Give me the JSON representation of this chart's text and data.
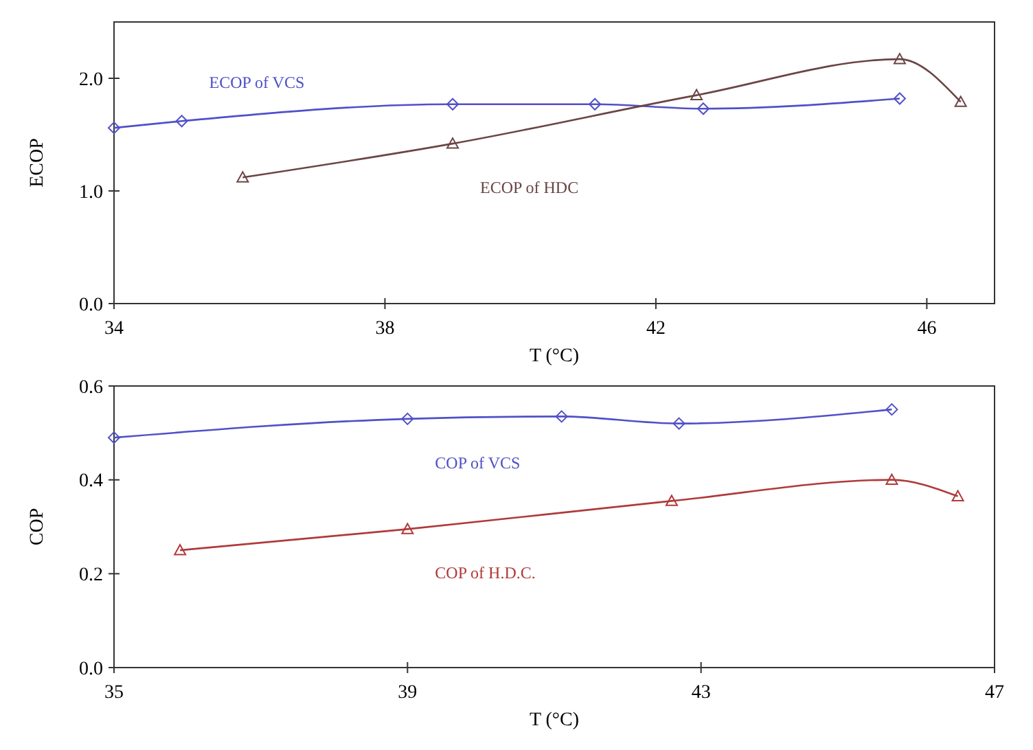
{
  "chart_data": [
    {
      "type": "line",
      "xlabel": "T (°C)",
      "ylabel": "ECOP",
      "xlim": [
        34,
        47
      ],
      "xticks": [
        34,
        38,
        42,
        46
      ],
      "ylim": [
        0,
        2.5
      ],
      "yticks": [
        {
          "value": 0,
          "label": "0.0"
        },
        {
          "value": 1,
          "label": "1.0"
        },
        {
          "value": 2,
          "label": "2.0"
        }
      ],
      "grid": false,
      "line_style": "solid",
      "series": [
        {
          "name": "ECOP of VCS",
          "color": "#5050c8",
          "marker": "diamond",
          "x": [
            34,
            35,
            39,
            41.1,
            42.7,
            45.6
          ],
          "values": [
            1.56,
            1.62,
            1.77,
            1.77,
            1.73,
            1.82
          ]
        },
        {
          "name": "ECOP of HDC",
          "color": "#6b4545",
          "marker": "triangle",
          "x": [
            35.9,
            39,
            42.6,
            45.6,
            46.5
          ],
          "values": [
            1.12,
            1.42,
            1.85,
            2.17,
            1.79
          ]
        }
      ]
    },
    {
      "type": "line",
      "xlabel": "T (°C)",
      "ylabel": "COP",
      "xlim": [
        35,
        47
      ],
      "xticks": [
        35,
        39,
        43,
        47
      ],
      "ylim": [
        0,
        0.6
      ],
      "yticks": [
        {
          "value": 0,
          "label": "0.0"
        },
        {
          "value": 0.2,
          "label": "0.2"
        },
        {
          "value": 0.4,
          "label": "0.4"
        },
        {
          "value": 0.6,
          "label": "0.6"
        }
      ],
      "grid": false,
      "line_style": "solid",
      "series": [
        {
          "name": "COP of VCS",
          "color": "#5050c8",
          "marker": "diamond",
          "x": [
            35,
            39,
            41.1,
            42.7,
            45.6
          ],
          "values": [
            0.49,
            0.53,
            0.535,
            0.52,
            0.55
          ]
        },
        {
          "name": "COP of H.D.C.",
          "color": "#b03a3a",
          "marker": "triangle",
          "x": [
            35.9,
            39,
            42.6,
            45.6,
            46.5
          ],
          "values": [
            0.25,
            0.295,
            0.355,
            0.4,
            0.365
          ]
        }
      ]
    }
  ]
}
